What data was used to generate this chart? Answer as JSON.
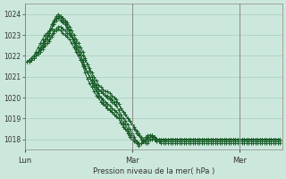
{
  "bg_color": "#cce8dc",
  "grid_color": "#aaccbb",
  "line_color": "#1a5e2a",
  "vline_color": "#888888",
  "ylim": [
    1017.5,
    1024.5
  ],
  "yticks": [
    1018,
    1019,
    1020,
    1021,
    1022,
    1023,
    1024
  ],
  "xlabel": "Pression niveau de la mer( hPa )",
  "xtick_labels": [
    "Lun",
    "Mar",
    "Mer"
  ],
  "xtick_positions": [
    0,
    48,
    96
  ],
  "vline_positions": [
    0,
    48,
    96
  ],
  "xlim": [
    0,
    115
  ],
  "series": [
    [
      1021.7,
      1021.7,
      1021.7,
      1021.8,
      1021.9,
      1022.0,
      1022.1,
      1022.2,
      1022.3,
      1022.5,
      1022.6,
      1022.8,
      1023.0,
      1023.2,
      1023.3,
      1023.4,
      1023.4,
      1023.3,
      1023.2,
      1023.1,
      1023.0,
      1022.9,
      1022.8,
      1022.6,
      1022.4,
      1022.2,
      1022.0,
      1021.8,
      1021.6,
      1021.4,
      1021.2,
      1021.0,
      1020.8,
      1020.6,
      1020.5,
      1020.4,
      1020.3,
      1020.3,
      1020.2,
      1020.1,
      1020.0,
      1019.9,
      1019.7,
      1019.5,
      1019.3,
      1019.2,
      1019.0,
      1018.9,
      1018.7,
      1018.5,
      1018.3,
      1018.2,
      1018.0,
      1017.9,
      1017.8,
      1017.8,
      1018.0,
      1018.2,
      1018.1,
      1018.0,
      1018.0,
      1018.0,
      1018.0,
      1018.0,
      1018.0,
      1018.0,
      1018.0,
      1018.0,
      1018.0,
      1018.0,
      1018.0,
      1018.0,
      1018.0,
      1018.0,
      1018.0,
      1018.0,
      1018.0,
      1018.0,
      1018.0,
      1018.0,
      1018.0,
      1018.0,
      1018.0,
      1018.0,
      1018.0,
      1018.0,
      1018.0,
      1018.0,
      1018.0,
      1018.0,
      1018.0,
      1018.0,
      1018.0,
      1018.0,
      1018.0,
      1018.0,
      1018.0,
      1018.0,
      1018.0,
      1018.0,
      1018.0,
      1018.0,
      1018.0,
      1018.0,
      1018.0,
      1018.0,
      1018.0,
      1018.0,
      1018.0,
      1018.0,
      1018.0,
      1018.0,
      1018.0,
      1018.0,
      1018.0,
      1018.0,
      1018.0
    ],
    [
      1021.7,
      1021.7,
      1021.7,
      1021.8,
      1021.9,
      1022.0,
      1022.1,
      1022.3,
      1022.5,
      1022.7,
      1022.9,
      1023.1,
      1023.3,
      1023.5,
      1023.8,
      1023.9,
      1023.9,
      1023.8,
      1023.7,
      1023.6,
      1023.4,
      1023.2,
      1023.0,
      1022.8,
      1022.6,
      1022.4,
      1022.2,
      1021.9,
      1021.6,
      1021.3,
      1021.0,
      1020.8,
      1020.6,
      1020.4,
      1020.3,
      1020.2,
      1020.1,
      1020.0,
      1019.9,
      1019.8,
      1019.7,
      1019.6,
      1019.4,
      1019.2,
      1019.0,
      1018.9,
      1018.7,
      1018.5,
      1018.3,
      1018.1,
      1017.9,
      1017.8,
      1017.8,
      1017.9,
      1018.0,
      1018.1,
      1018.2,
      1018.2,
      1018.1,
      1018.0,
      1018.0,
      1017.9,
      1017.9,
      1017.9,
      1018.0,
      1018.0,
      1018.0,
      1018.0,
      1018.0,
      1018.0,
      1018.0,
      1018.0,
      1018.0,
      1018.0,
      1018.0,
      1018.0,
      1018.0,
      1018.0,
      1018.0,
      1018.0,
      1018.0,
      1018.0,
      1018.0,
      1018.0,
      1018.0,
      1018.0,
      1018.0,
      1018.0,
      1018.0,
      1018.0,
      1018.0,
      1018.0,
      1018.0,
      1018.0,
      1018.0,
      1018.0,
      1018.0,
      1018.0,
      1018.0,
      1018.0,
      1018.0,
      1018.0,
      1018.0,
      1018.0,
      1018.0,
      1018.0,
      1018.0,
      1018.0,
      1018.0,
      1018.0,
      1018.0,
      1018.0,
      1018.0,
      1018.0,
      1018.0,
      1018.0,
      1018.0
    ],
    [
      1021.7,
      1021.7,
      1021.7,
      1021.8,
      1021.9,
      1022.0,
      1022.2,
      1022.4,
      1022.6,
      1022.8,
      1023.0,
      1023.2,
      1023.5,
      1023.7,
      1023.9,
      1024.0,
      1023.9,
      1023.8,
      1023.7,
      1023.5,
      1023.2,
      1023.0,
      1022.7,
      1022.5,
      1022.2,
      1022.0,
      1021.7,
      1021.4,
      1021.2,
      1021.0,
      1020.7,
      1020.5,
      1020.3,
      1020.1,
      1020.0,
      1019.8,
      1019.6,
      1019.5,
      1019.4,
      1019.3,
      1019.2,
      1019.1,
      1019.0,
      1018.8,
      1018.6,
      1018.5,
      1018.3,
      1018.1,
      1018.0,
      1017.9,
      1017.8,
      1017.7,
      1017.8,
      1017.9,
      1018.0,
      1018.1,
      1018.1,
      1018.1,
      1018.0,
      1017.9,
      1017.9,
      1017.8,
      1017.8,
      1017.8,
      1017.8,
      1017.8,
      1017.8,
      1017.8,
      1017.8,
      1017.8,
      1017.8,
      1017.8,
      1017.8,
      1017.8,
      1017.8,
      1017.8,
      1017.8,
      1017.8,
      1017.8,
      1017.8,
      1017.8,
      1017.8,
      1017.8,
      1017.8,
      1017.8,
      1017.8,
      1017.8,
      1017.8,
      1017.8,
      1017.8,
      1017.8,
      1017.8,
      1017.8,
      1017.8,
      1017.8,
      1017.8,
      1017.8,
      1017.8,
      1017.8,
      1017.8,
      1017.8,
      1017.8,
      1017.8,
      1017.8,
      1017.8,
      1017.8,
      1017.8,
      1017.8,
      1017.8,
      1017.8,
      1017.8,
      1017.8,
      1017.8,
      1017.8,
      1017.8,
      1017.8,
      1017.8
    ],
    [
      1021.7,
      1021.7,
      1021.8,
      1021.9,
      1022.0,
      1022.1,
      1022.2,
      1022.3,
      1022.4,
      1022.5,
      1022.6,
      1022.7,
      1022.9,
      1023.1,
      1023.2,
      1023.3,
      1023.2,
      1023.1,
      1023.0,
      1022.9,
      1022.8,
      1022.6,
      1022.4,
      1022.2,
      1022.0,
      1021.8,
      1021.6,
      1021.4,
      1021.2,
      1021.0,
      1020.8,
      1020.7,
      1020.5,
      1020.4,
      1020.3,
      1020.2,
      1020.1,
      1020.1,
      1020.0,
      1019.9,
      1019.8,
      1019.8,
      1019.7,
      1019.5,
      1019.3,
      1019.2,
      1019.0,
      1018.9,
      1018.7,
      1018.6,
      1018.4,
      1018.3,
      1018.1,
      1018.0,
      1017.9,
      1018.0,
      1018.1,
      1018.2,
      1018.1,
      1018.0,
      1018.0,
      1018.0,
      1018.0,
      1018.0,
      1018.0,
      1018.0,
      1018.0,
      1018.0,
      1018.0,
      1018.0,
      1018.0,
      1018.0,
      1018.0,
      1018.0,
      1018.0,
      1018.0,
      1018.0,
      1018.0,
      1018.0,
      1018.0,
      1018.0,
      1018.0,
      1018.0,
      1018.0,
      1018.0,
      1018.0,
      1018.0,
      1018.0,
      1018.0,
      1018.0,
      1018.0,
      1018.0,
      1018.0,
      1018.0,
      1018.0,
      1018.0,
      1018.0,
      1018.0,
      1018.0,
      1018.0,
      1018.0,
      1018.0,
      1018.0,
      1018.0,
      1018.0,
      1018.0,
      1018.0,
      1018.0,
      1018.0,
      1018.0,
      1018.0,
      1018.0,
      1018.0,
      1018.0,
      1018.0,
      1018.0,
      1018.0
    ],
    [
      1021.7,
      1021.7,
      1021.7,
      1021.8,
      1021.9,
      1022.0,
      1022.1,
      1022.2,
      1022.4,
      1022.6,
      1022.8,
      1023.0,
      1023.3,
      1023.6,
      1023.8,
      1023.9,
      1023.8,
      1023.7,
      1023.6,
      1023.4,
      1023.2,
      1023.0,
      1022.8,
      1022.5,
      1022.2,
      1022.0,
      1021.8,
      1021.5,
      1021.2,
      1021.0,
      1020.8,
      1020.6,
      1020.4,
      1020.2,
      1020.0,
      1019.9,
      1019.8,
      1019.7,
      1019.6,
      1019.5,
      1019.4,
      1019.3,
      1019.2,
      1019.0,
      1018.8,
      1018.7,
      1018.5,
      1018.3,
      1018.2,
      1018.0,
      1017.9,
      1017.8,
      1017.8,
      1017.9,
      1018.0,
      1018.0,
      1018.0,
      1018.0,
      1018.0,
      1018.0,
      1018.0,
      1018.0,
      1018.0,
      1018.0,
      1018.0,
      1018.0,
      1018.0,
      1018.0,
      1018.0,
      1018.0,
      1018.0,
      1018.0,
      1018.0,
      1018.0,
      1018.0,
      1018.0,
      1018.0,
      1018.0,
      1018.0,
      1018.0,
      1018.0,
      1018.0,
      1018.0,
      1018.0,
      1018.0,
      1018.0,
      1018.0,
      1018.0,
      1018.0,
      1018.0,
      1018.0,
      1018.0,
      1018.0,
      1018.0,
      1018.0,
      1018.0,
      1018.0,
      1018.0,
      1018.0,
      1018.0,
      1018.0,
      1018.0,
      1018.0,
      1018.0,
      1018.0,
      1018.0,
      1018.0,
      1018.0,
      1018.0,
      1018.0,
      1018.0,
      1018.0,
      1018.0,
      1018.0,
      1018.0,
      1018.0,
      1018.0
    ],
    [
      1021.7,
      1021.7,
      1021.8,
      1021.9,
      1022.0,
      1022.2,
      1022.4,
      1022.6,
      1022.8,
      1023.0,
      1023.1,
      1023.2,
      1023.3,
      1023.5,
      1023.7,
      1023.8,
      1023.7,
      1023.6,
      1023.5,
      1023.3,
      1023.1,
      1022.9,
      1022.6,
      1022.3,
      1022.0,
      1021.8,
      1021.5,
      1021.2,
      1020.9,
      1020.7,
      1020.5,
      1020.3,
      1020.1,
      1020.0,
      1019.8,
      1019.7,
      1019.6,
      1019.5,
      1019.4,
      1019.3,
      1019.2,
      1019.1,
      1019.0,
      1018.8,
      1018.7,
      1018.5,
      1018.4,
      1018.2,
      1018.1,
      1018.0,
      1017.9,
      1017.8,
      1017.8,
      1018.0,
      1018.1,
      1018.2,
      1018.2,
      1018.1,
      1018.0,
      1017.9,
      1017.9,
      1017.9,
      1017.9,
      1017.9,
      1017.9,
      1017.9,
      1017.9,
      1017.9,
      1017.9,
      1017.9,
      1017.9,
      1017.9,
      1017.9,
      1017.9,
      1017.9,
      1017.9,
      1017.9,
      1017.9,
      1017.9,
      1017.9,
      1017.9,
      1017.9,
      1017.9,
      1017.9,
      1017.9,
      1017.9,
      1017.9,
      1017.9,
      1017.9,
      1017.9,
      1017.9,
      1017.9,
      1017.9,
      1017.9,
      1017.9,
      1017.9,
      1017.9,
      1017.9,
      1017.9,
      1017.9,
      1017.9,
      1017.9,
      1017.9,
      1017.9,
      1017.9,
      1017.9,
      1017.9,
      1017.9,
      1017.9,
      1017.9,
      1017.9,
      1017.9,
      1017.9,
      1017.9,
      1017.9,
      1017.9,
      1017.9
    ]
  ]
}
